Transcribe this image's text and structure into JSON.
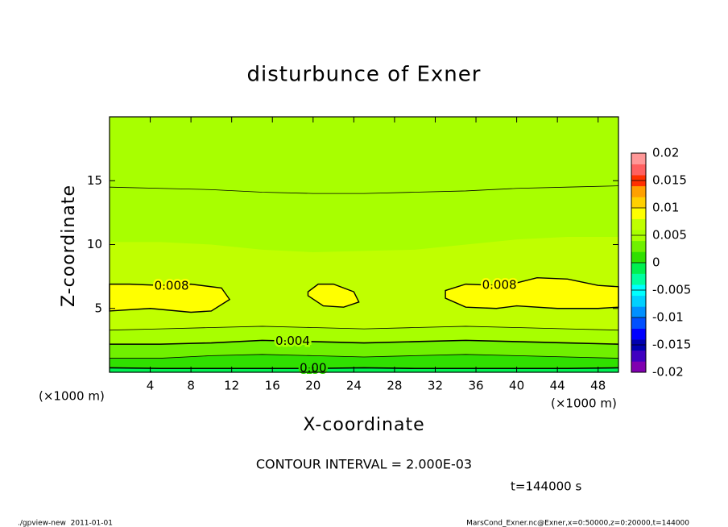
{
  "chart_data": {
    "type": "contour",
    "title": "disturbunce of Exner",
    "x_label": "X-coordinate",
    "y_label": "Z-coordinate",
    "x_unit": "(×1000 m)",
    "xlim": [
      0,
      50
    ],
    "xticks": [
      4,
      8,
      12,
      16,
      20,
      24,
      28,
      32,
      36,
      40,
      44,
      48
    ],
    "ylim": [
      0,
      20
    ],
    "yticks": [
      5,
      10,
      15
    ],
    "x": [
      0,
      5,
      10,
      15,
      20,
      25,
      30,
      35,
      40,
      45,
      50
    ],
    "bands": [
      {
        "level": -0.002,
        "z_top": [
          0.35,
          0.3,
          0.3,
          0.3,
          0.3,
          0.35,
          0.3,
          0.3,
          0.3,
          0.3,
          0.35
        ]
      },
      {
        "level": 0,
        "z_top": [
          1.1,
          1.1,
          1.3,
          1.4,
          1.3,
          1.2,
          1.3,
          1.4,
          1.3,
          1.2,
          1.1
        ]
      },
      {
        "level": 0.002,
        "z_top": [
          2.2,
          2.2,
          2.3,
          2.5,
          2.4,
          2.3,
          2.4,
          2.5,
          2.4,
          2.3,
          2.2
        ]
      },
      {
        "level": 0.004,
        "z_top": [
          3.3,
          3.4,
          3.5,
          3.6,
          3.5,
          3.4,
          3.5,
          3.6,
          3.5,
          3.4,
          3.3
        ]
      },
      {
        "level": 0.006,
        "z_top": [
          10.2,
          10.2,
          10.0,
          9.6,
          9.4,
          9.5,
          9.6,
          10.0,
          10.4,
          10.6,
          10.6
        ]
      },
      {
        "level": 0.004
      }
    ],
    "contours": [
      {
        "level": {
          "value": 0,
          "label": "0.00"
        },
        "z": [
          0.35,
          0.3,
          0.3,
          0.3,
          0.3,
          0.35,
          0.3,
          0.3,
          0.3,
          0.3,
          0.35
        ]
      },
      {
        "level": 0.002,
        "z": [
          1.1,
          1.1,
          1.3,
          1.4,
          1.3,
          1.2,
          1.3,
          1.4,
          1.3,
          1.2,
          1.1
        ]
      },
      {
        "level": 0.004,
        "z": [
          2.2,
          2.2,
          2.3,
          2.5,
          2.4,
          2.3,
          2.4,
          2.5,
          2.4,
          2.3,
          2.2
        ]
      },
      {
        "level": 0.006,
        "z": [
          3.3,
          3.4,
          3.5,
          3.6,
          3.5,
          3.4,
          3.5,
          3.6,
          3.5,
          3.4,
          3.3
        ]
      },
      {
        "level": 0.006,
        "z": [
          14.5,
          14.4,
          14.3,
          14.1,
          14.0,
          14.0,
          14.1,
          14.2,
          14.4,
          14.5,
          14.6
        ]
      }
    ],
    "patches": [
      {
        "level": 0.008,
        "x": [
          0,
          4,
          8,
          10,
          11.8,
          11,
          8,
          5,
          2,
          0
        ],
        "z": [
          4.8,
          5.0,
          4.7,
          4.8,
          5.7,
          6.6,
          6.9,
          6.8,
          6.9,
          6.9
        ]
      },
      {
        "level": 0.008,
        "x": [
          19.5,
          21,
          23,
          24.5,
          24,
          22,
          20.5,
          19.5
        ],
        "z": [
          6.0,
          5.2,
          5.1,
          5.5,
          6.3,
          6.9,
          6.9,
          6.3
        ]
      },
      {
        "level": 0.008,
        "x": [
          33,
          35,
          38,
          40,
          44,
          48,
          50,
          50,
          48,
          45,
          42,
          40,
          38,
          35,
          33
        ],
        "z": [
          5.8,
          5.1,
          5.0,
          5.2,
          5.0,
          5.0,
          5.1,
          6.7,
          6.8,
          7.3,
          7.4,
          7.0,
          6.8,
          6.9,
          6.4
        ]
      }
    ],
    "colorbar": {
      "lim": [
        -0.02,
        0.02
      ],
      "ticks": [
        0.02,
        0.015,
        0.01,
        0.005,
        0,
        -0.005,
        -0.01,
        -0.015,
        -0.02
      ],
      "colors": [
        "#8000b0",
        "#4000c0",
        "#0000b0",
        "#0000ff",
        "#0050ff",
        "#0090ff",
        "#00d0ff",
        "#00ffff",
        "#00ffa0",
        "#00f050",
        "#30e000",
        "#70f000",
        "#a8ff00",
        "#c0ff00",
        "#ffff00",
        "#ffd000",
        "#ffa000",
        "#ff3000",
        "#ff6060",
        "#ff9898"
      ]
    },
    "contour_interval_text": "CONTOUR INTERVAL = 2.000E-03",
    "time_label": "t=144000 s",
    "footer_left": "./gpview-new  2011-01-01",
    "footer_right": "MarsCond_Exner.nc@Exner,x=0:50000,z=0:20000,t=144000"
  }
}
